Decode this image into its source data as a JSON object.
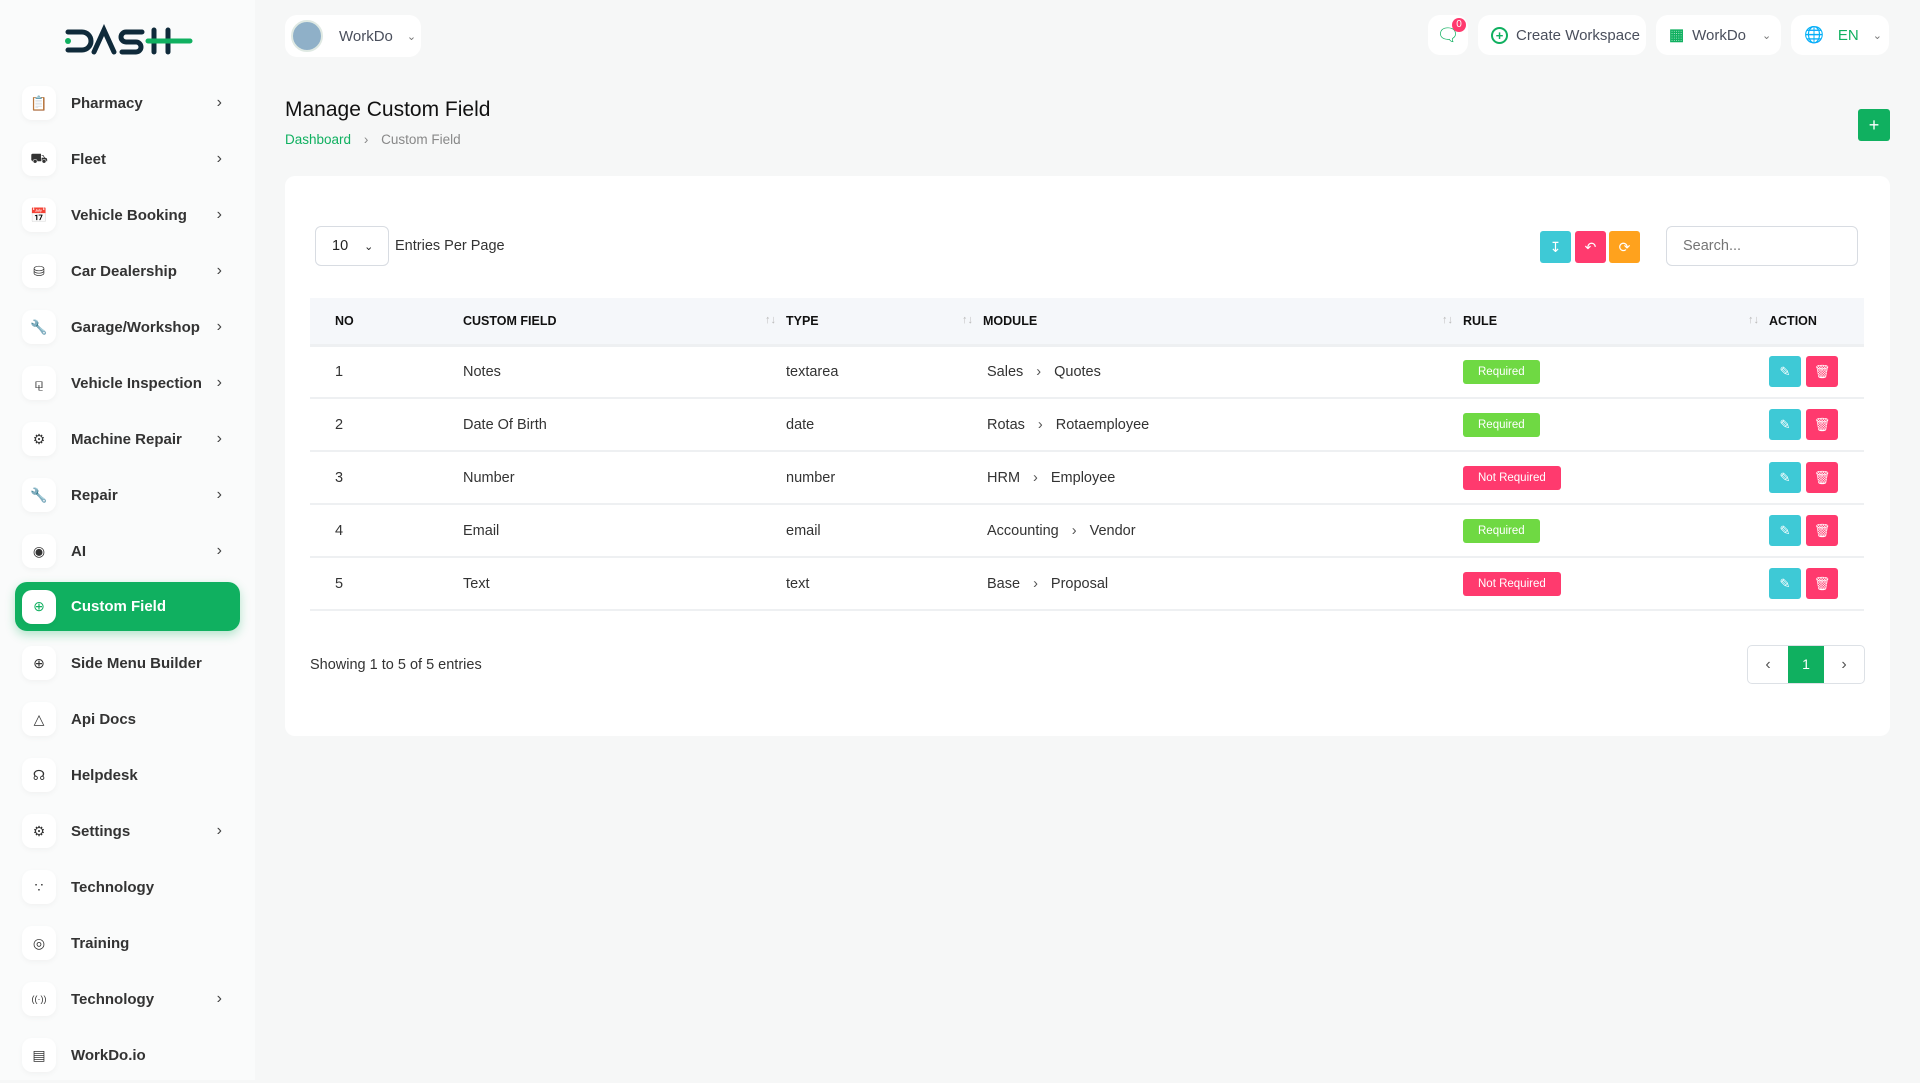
{
  "brand": {
    "logo_text": "DASH"
  },
  "header": {
    "workspace": "WorkDo",
    "notifications_count": "0",
    "create_workspace": "Create Workspace",
    "workspace_menu": "WorkDo",
    "language": "EN"
  },
  "sidebar": {
    "items": [
      {
        "label": "Pharmacy",
        "icon": "clipboard-icon",
        "chevron": true
      },
      {
        "label": "Fleet",
        "icon": "truck-icon",
        "chevron": true
      },
      {
        "label": "Vehicle Booking",
        "icon": "calendar-icon",
        "chevron": true
      },
      {
        "label": "Car Dealership",
        "icon": "car-icon",
        "chevron": true
      },
      {
        "label": "Garage/Workshop",
        "icon": "wrench-icon",
        "chevron": true
      },
      {
        "label": "Vehicle Inspection",
        "icon": "motorbike-icon",
        "chevron": true
      },
      {
        "label": "Machine Repair",
        "icon": "gauge-icon",
        "chevron": true
      },
      {
        "label": "Repair",
        "icon": "tools-icon",
        "chevron": true
      },
      {
        "label": "AI",
        "icon": "ai-icon",
        "chevron": true
      },
      {
        "label": "Custom Field",
        "icon": "plus-circle-icon",
        "chevron": false,
        "active": true
      },
      {
        "label": "Side Menu Builder",
        "icon": "plus-circle-icon",
        "chevron": false
      },
      {
        "label": "Api Docs",
        "icon": "network-icon",
        "chevron": false
      },
      {
        "label": "Helpdesk",
        "icon": "headphones-icon",
        "chevron": false
      },
      {
        "label": "Settings",
        "icon": "gear-icon",
        "chevron": true
      },
      {
        "label": "Technology",
        "icon": "branch-icon",
        "chevron": false
      },
      {
        "label": "Training",
        "icon": "training-icon",
        "chevron": false
      },
      {
        "label": "Technology",
        "icon": "broadcast-icon",
        "chevron": true
      },
      {
        "label": "WorkDo.io",
        "icon": "document-icon",
        "chevron": false
      }
    ]
  },
  "page": {
    "title": "Manage Custom Field",
    "breadcrumb": [
      "Dashboard",
      "Custom Field"
    ]
  },
  "table_controls": {
    "per_page": "10",
    "per_page_label": "Entries Per Page",
    "search_placeholder": "Search..."
  },
  "table": {
    "columns": [
      "NO",
      "CUSTOM FIELD",
      "TYPE",
      "MODULE",
      "RULE",
      "ACTION"
    ],
    "rows": [
      {
        "no": "1",
        "field": "Notes",
        "type": "textarea",
        "module": "Sales",
        "submodule": "Quotes",
        "rule": "Required"
      },
      {
        "no": "2",
        "field": "Date Of Birth",
        "type": "date",
        "module": "Rotas",
        "submodule": "Rotaemployee",
        "rule": "Required"
      },
      {
        "no": "3",
        "field": "Number",
        "type": "number",
        "module": "HRM",
        "submodule": "Employee",
        "rule": "Not Required"
      },
      {
        "no": "4",
        "field": "Email",
        "type": "email",
        "module": "Accounting",
        "submodule": "Vendor",
        "rule": "Required"
      },
      {
        "no": "5",
        "field": "Text",
        "type": "text",
        "module": "Base",
        "submodule": "Proposal",
        "rule": "Not Required"
      }
    ]
  },
  "footer": {
    "showing": "Showing 1 to 5 of 5 entries",
    "current_page": "1"
  },
  "colors": {
    "primary": "#10b060",
    "required": "#6fd943",
    "not_required": "#ff3a6e",
    "info": "#3ec9d6",
    "warning": "#ffa21d"
  }
}
